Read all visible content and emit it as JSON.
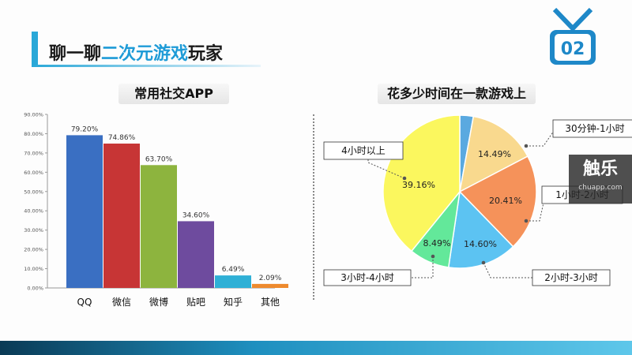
{
  "slide": {
    "title_prefix": "聊一聊",
    "title_highlight": "二次元游戏",
    "title_suffix": "玩家",
    "badge_number": "02"
  },
  "watermark": {
    "main": "触乐",
    "sub": "chuapp.com"
  },
  "colors": {
    "accent": "#29a8d8",
    "title_highlight": "#1e9bd7",
    "badge": "#1e88c8"
  },
  "chart_data": [
    {
      "type": "bar",
      "title": "常用社交APP",
      "categories": [
        "QQ",
        "微信",
        "微博",
        "贴吧",
        "知乎",
        "其他"
      ],
      "values": [
        79.2,
        74.86,
        63.7,
        34.6,
        6.49,
        2.09
      ],
      "value_labels": [
        "79.20%",
        "74.86%",
        "63.70%",
        "34.60%",
        "6.49%",
        "2.09%"
      ],
      "colors": [
        "#3a6fc2",
        "#c73535",
        "#8db43e",
        "#6e4b9e",
        "#2fb0d6",
        "#ee8a2e"
      ],
      "y_ticks": [
        "0.00%",
        "10.00%",
        "20.00%",
        "30.00%",
        "40.00%",
        "50.00%",
        "60.00%",
        "70.00%",
        "80.00%",
        "90.00%"
      ],
      "ylim": [
        0,
        90
      ],
      "grid": false
    },
    {
      "type": "pie",
      "title": "花多少时间在一款游戏上",
      "slices": [
        {
          "label": "",
          "value": 2.85,
          "display": "",
          "color": "#5aa9e0"
        },
        {
          "label": "30分钟-1小时",
          "value": 14.49,
          "display": "14.49%",
          "color": "#f9d98e"
        },
        {
          "label": "1小时-2小时",
          "value": 20.41,
          "display": "20.41%",
          "color": "#f5925a"
        },
        {
          "label": "2小时-3小时",
          "value": 14.6,
          "display": "14.60%",
          "color": "#5cc3f2"
        },
        {
          "label": "3小时-4小时",
          "value": 8.49,
          "display": "8.49%",
          "color": "#63e89a"
        },
        {
          "label": "4小时以上",
          "value": 39.16,
          "display": "39.16%",
          "color": "#fbf75e"
        }
      ]
    }
  ]
}
